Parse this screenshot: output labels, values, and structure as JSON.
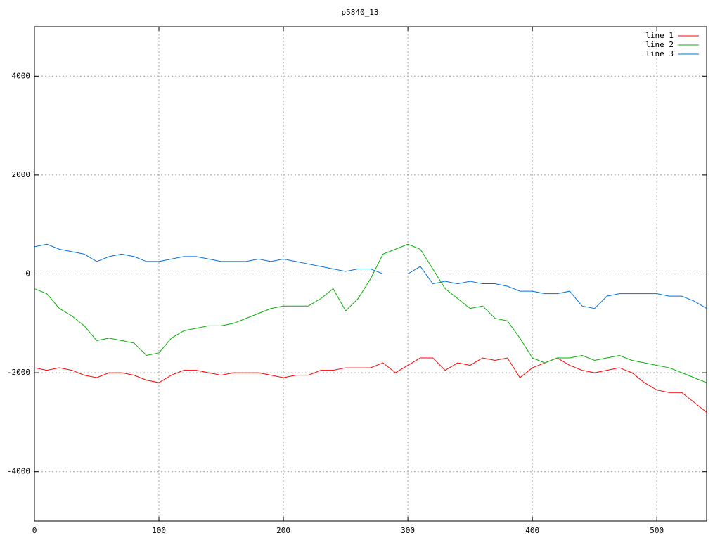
{
  "chart_data": {
    "type": "line",
    "title": "p5840_13",
    "x": [
      0,
      10,
      20,
      30,
      40,
      50,
      60,
      70,
      80,
      90,
      100,
      110,
      120,
      130,
      140,
      150,
      160,
      170,
      180,
      190,
      200,
      210,
      220,
      230,
      240,
      250,
      260,
      270,
      280,
      290,
      300,
      310,
      320,
      330,
      340,
      350,
      360,
      370,
      380,
      390,
      400,
      410,
      420,
      430,
      440,
      450,
      460,
      470,
      480,
      490,
      500,
      510,
      520,
      530,
      540
    ],
    "series": [
      {
        "name": "line 1",
        "color": "#ff0000",
        "values": [
          -1900,
          -1950,
          -1900,
          -1950,
          -2050,
          -2100,
          -2000,
          -2000,
          -2050,
          -2150,
          -2200,
          -2050,
          -1950,
          -1950,
          -2000,
          -2050,
          -2000,
          -2000,
          -2000,
          -2050,
          -2100,
          -2050,
          -2050,
          -1950,
          -1950,
          -1900,
          -1900,
          -1900,
          -1800,
          -2000,
          -1850,
          -1700,
          -1700,
          -1950,
          -1800,
          -1850,
          -1700,
          -1750,
          -1700,
          -2100,
          -1900,
          -1800,
          -1700,
          -1850,
          -1950,
          -2000,
          -1950,
          -1900,
          -2000,
          -2200,
          -2350,
          -2400,
          -2400,
          -2600,
          -2800
        ]
      },
      {
        "name": "line 2",
        "color": "#00b000",
        "values": [
          -300,
          -400,
          -700,
          -850,
          -1050,
          -1350,
          -1300,
          -1350,
          -1400,
          -1650,
          -1600,
          -1300,
          -1150,
          -1100,
          -1050,
          -1050,
          -1000,
          -900,
          -800,
          -700,
          -650,
          -650,
          -650,
          -500,
          -300,
          -750,
          -500,
          -100,
          400,
          500,
          600,
          500,
          100,
          -300,
          -500,
          -700,
          -650,
          -900,
          -950,
          -1300,
          -1700,
          -1800,
          -1700,
          -1700,
          -1650,
          -1750,
          -1700,
          -1650,
          -1750,
          -1800,
          -1850,
          -1900,
          -2000,
          -2100,
          -2200
        ]
      },
      {
        "name": "line 3",
        "color": "#0070e0",
        "values": [
          550,
          600,
          500,
          450,
          400,
          250,
          350,
          400,
          350,
          250,
          250,
          300,
          350,
          350,
          300,
          250,
          250,
          250,
          300,
          250,
          300,
          250,
          200,
          150,
          100,
          50,
          100,
          100,
          0,
          0,
          0,
          150,
          -200,
          -150,
          -200,
          -150,
          -200,
          -200,
          -250,
          -350,
          -350,
          -400,
          -400,
          -350,
          -650,
          -700,
          -450,
          -400,
          -400,
          -400,
          -400,
          -450,
          -450,
          -550,
          -700
        ]
      }
    ],
    "xlim": [
      0,
      540
    ],
    "ylim": [
      -5000,
      5000
    ],
    "xticks": [
      0,
      100,
      200,
      300,
      400,
      500
    ],
    "yticks": [
      -4000,
      -2000,
      0,
      2000,
      4000
    ],
    "grid": true,
    "legend": "top-right"
  }
}
